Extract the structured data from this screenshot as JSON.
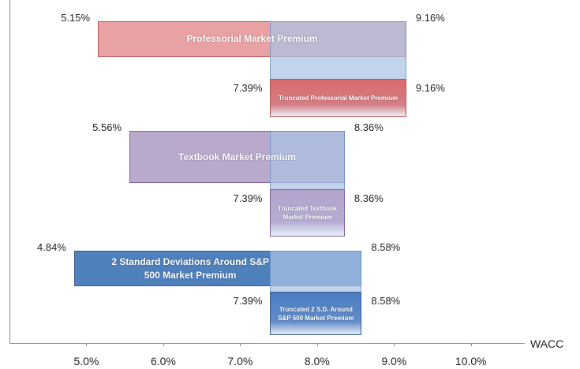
{
  "chart_data": {
    "type": "range_bar",
    "x_label": "WACC",
    "xlim": [
      4,
      10.7
    ],
    "xticks": [
      {
        "value": 5,
        "label": "5.0%"
      },
      {
        "value": 6,
        "label": "6.0%"
      },
      {
        "value": 7,
        "label": "7.0%"
      },
      {
        "value": 8,
        "label": "8.0%"
      },
      {
        "value": 9,
        "label": "9.0%"
      },
      {
        "value": 10,
        "label": "10.0%"
      }
    ],
    "bars": [
      {
        "name": "Professorial Market Premium",
        "values": [
          5.15,
          9.16
        ],
        "value_labels": [
          "5.15%",
          "9.16%"
        ],
        "color": "#e8a2a4",
        "border": "#c0504d"
      },
      {
        "name": "Truncated Professorial Market Premium",
        "values": [
          7.39,
          9.16
        ],
        "value_labels": [
          "7.39%",
          "9.16%"
        ],
        "color": "#d9696c",
        "border": "#c0504d"
      },
      {
        "name": "Textbook Market Premium",
        "values": [
          5.56,
          8.36
        ],
        "value_labels": [
          "5.56%",
          "8.36%"
        ],
        "color": "#b9aacd",
        "border": "#8064a2"
      },
      {
        "name": "Truncated Textbook Market Premium",
        "values": [
          7.39,
          8.36
        ],
        "value_labels": [
          "7.39%",
          "8.36%"
        ],
        "color": "#b3a3cc",
        "border": "#8064a2"
      },
      {
        "name": "2 Standard Deviations Around S&P 500 Market Premium",
        "values": [
          4.84,
          8.58
        ],
        "value_labels": [
          "4.84%",
          "8.58%"
        ],
        "color": "#4f81bd",
        "border": "#385d8a"
      },
      {
        "name": "Truncated 2 S.D. Around S&P 500 Market Premium",
        "values": [
          7.39,
          8.58
        ],
        "value_labels": [
          "7.39%",
          "8.58%"
        ],
        "color": "#4a7cc0",
        "border": "#385d8a"
      }
    ]
  }
}
